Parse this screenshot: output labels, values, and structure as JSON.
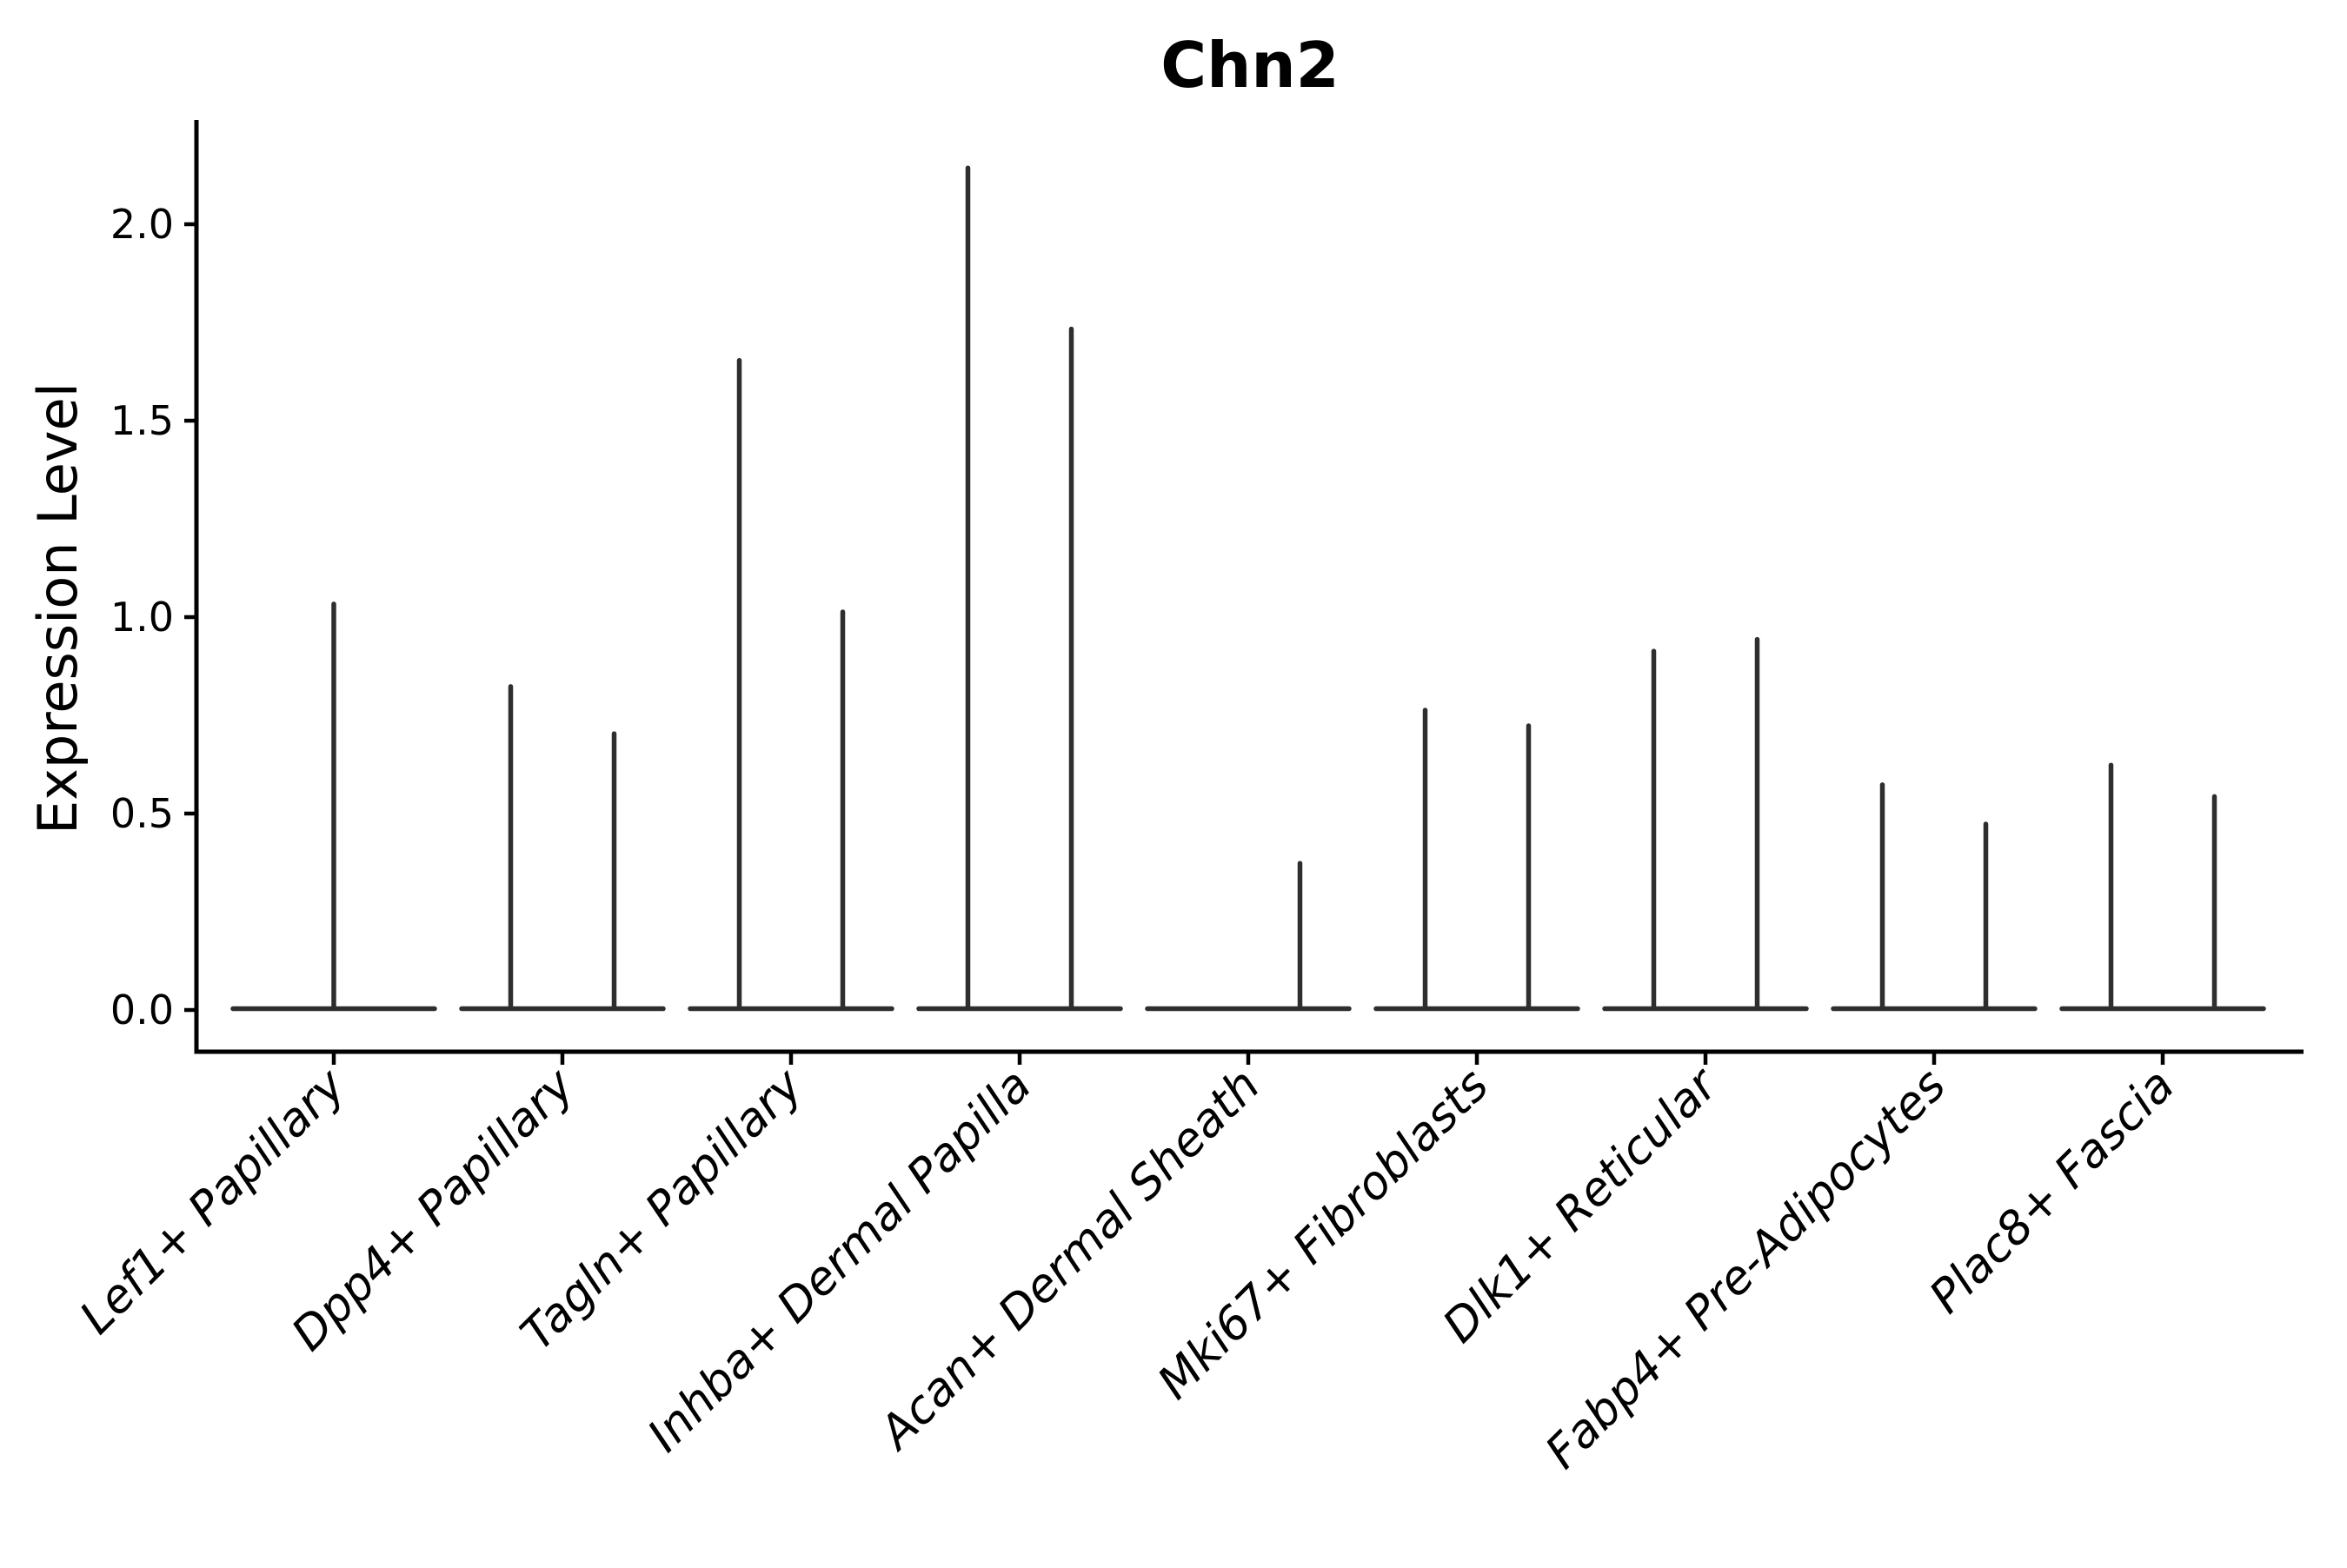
{
  "chart_data": {
    "type": "violin",
    "title": "Chn2",
    "ylabel": "Expression Level",
    "xlabel": "",
    "ylim": [
      -0.11,
      2.27
    ],
    "yticks": [
      0.0,
      0.5,
      1.0,
      1.5,
      2.0
    ],
    "ytick_labels": [
      "0.0",
      "0.5",
      "1.0",
      "1.5",
      "2.0"
    ],
    "grid": false,
    "legend_position": "none",
    "categories": [
      "Lef1+ Papillary",
      "Dpp4+ Papillary",
      "Tagln+ Papillary",
      "Inhba+ Dermal Papilla",
      "Acan+ Dermal Sheath",
      "Mki67+ Fibroblasts",
      "Dlk1+ Reticular",
      "Fabp4+ Pre-Adipocytes",
      "Plac8+ Fascia"
    ],
    "groups": [
      {
        "category": "Lef1+ Papillary",
        "violins": [
          {
            "position": "center",
            "max": 1.04
          }
        ]
      },
      {
        "category": "Dpp4+ Papillary",
        "violins": [
          {
            "position": "left",
            "max": 0.83
          },
          {
            "position": "right",
            "max": 0.71
          }
        ]
      },
      {
        "category": "Tagln+ Papillary",
        "violins": [
          {
            "position": "left",
            "max": 1.66
          },
          {
            "position": "right",
            "max": 1.02
          }
        ]
      },
      {
        "category": "Inhba+ Dermal Papilla",
        "violins": [
          {
            "position": "left",
            "max": 2.15
          },
          {
            "position": "right",
            "max": 1.74
          }
        ]
      },
      {
        "category": "Acan+ Dermal Sheath",
        "violins": [
          {
            "position": "left",
            "max": 0.0
          },
          {
            "position": "right",
            "max": 0.38
          }
        ]
      },
      {
        "category": "Mki67+ Fibroblasts",
        "violins": [
          {
            "position": "left",
            "max": 0.77
          },
          {
            "position": "right",
            "max": 0.73
          }
        ]
      },
      {
        "category": "Dlk1+ Reticular",
        "violins": [
          {
            "position": "left",
            "max": 0.92
          },
          {
            "position": "right",
            "max": 0.95
          }
        ]
      },
      {
        "category": "Fabp4+ Pre-Adipocytes",
        "violins": [
          {
            "position": "left",
            "max": 0.58
          },
          {
            "position": "right",
            "max": 0.48
          }
        ]
      },
      {
        "category": "Plac8+ Fascia",
        "violins": [
          {
            "position": "left",
            "max": 0.63
          },
          {
            "position": "right",
            "max": 0.55
          }
        ]
      }
    ],
    "colors": {
      "violin_ink": "#2e2e2e",
      "axis": "#000000",
      "background": "#ffffff"
    }
  }
}
